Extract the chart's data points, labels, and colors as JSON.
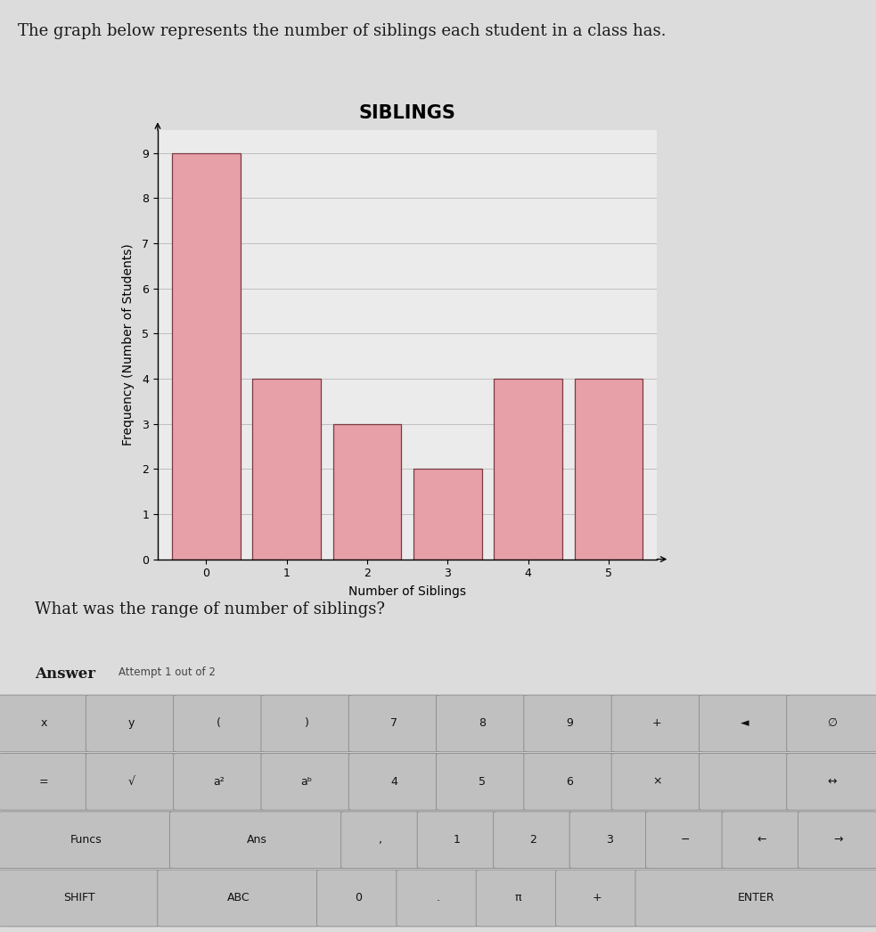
{
  "title": "SIBLINGS",
  "xlabel": "Number of Siblings",
  "ylabel": "Frequency (Number of Students)",
  "categories": [
    0,
    1,
    2,
    3,
    4,
    5
  ],
  "values": [
    9,
    4,
    3,
    2,
    4,
    4
  ],
  "bar_color": "#e8a0a8",
  "bar_edge_color": "#7a3a42",
  "ylim": [
    0,
    9.5
  ],
  "yticks": [
    0,
    1,
    2,
    3,
    4,
    5,
    6,
    7,
    8,
    9
  ],
  "xticks": [
    0,
    1,
    2,
    3,
    4,
    5
  ],
  "background_color": "#dcdcdc",
  "plot_bg_color": "#ebebeb",
  "header_text": "The graph below represents the number of siblings each student in a class has.",
  "question_text": "What was the range of number of siblings?",
  "title_fontsize": 15,
  "axis_label_fontsize": 10,
  "tick_fontsize": 9,
  "kbd_bg": "#d0d0d0",
  "kbd_key_color": "#c0c0c0",
  "kbd_key_edge": "#888888",
  "kbd_row1": [
    "x",
    "y",
    "(",
    ")",
    "7",
    "8",
    "9",
    "+",
    "◄",
    "∅"
  ],
  "kbd_row2": [
    "=",
    "√",
    "a²",
    "aᵇ",
    "4",
    "5",
    "6",
    "×",
    "",
    "↔"
  ],
  "kbd_row3": [
    "Funcs",
    "Ans",
    ",",
    "1",
    "2",
    "3",
    "−",
    "←",
    "→"
  ],
  "kbd_row4": [
    "SHIFT",
    "ABC",
    "0",
    ".",
    "π",
    "+",
    "ENTER"
  ]
}
